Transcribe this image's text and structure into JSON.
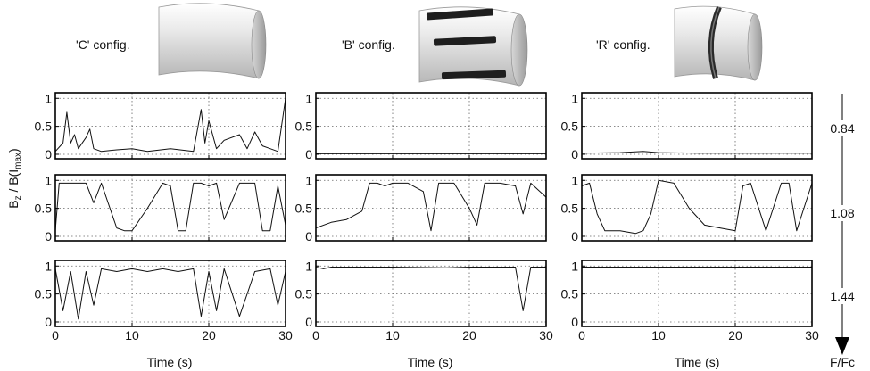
{
  "figure": {
    "ylabel": "B_z / B(I_max)",
    "ylabel_main": "B",
    "ylabel_sub_z": "z",
    "ylabel_mid": " / B(I",
    "ylabel_sub_max": "max",
    "ylabel_end": ")",
    "xlabel": "Time (s)",
    "ratio_axis_label": "F/Fc",
    "ratios": [
      "0.84",
      "1.08",
      "1.44"
    ]
  },
  "configs": [
    {
      "label": "'C' config."
    },
    {
      "label": "'B' config."
    },
    {
      "label": "'R' config."
    }
  ],
  "chart_data": {
    "type": "line",
    "layout": "3x3 grid of time series; columns = configurations, rows = F/Fc ratio",
    "xlabel": "Time (s)",
    "ylabel": "Bz / B(Imax)",
    "xlim": [
      0,
      30
    ],
    "ylim": [
      0,
      1
    ],
    "x_ticks": [
      0,
      10,
      20,
      30
    ],
    "y_ticks": [
      0,
      0.5,
      1
    ],
    "grid": "dotted",
    "columns": [
      "'C' config.",
      "'B' config.",
      "'R' config."
    ],
    "rows": [
      "0.84",
      "1.08",
      "1.44"
    ],
    "panels": [
      {
        "config": "'C' config.",
        "ratio": "0.84",
        "x": [
          0,
          1,
          1.5,
          2,
          2.5,
          3,
          4,
          4.5,
          5,
          6,
          8,
          10,
          12,
          15,
          18,
          19,
          19.5,
          20,
          21,
          22,
          24,
          25,
          26,
          27,
          28,
          29,
          30
        ],
        "y": [
          0.05,
          0.2,
          0.75,
          0.2,
          0.35,
          0.1,
          0.3,
          0.45,
          0.1,
          0.05,
          0.08,
          0.1,
          0.05,
          0.1,
          0.05,
          0.8,
          0.2,
          0.6,
          0.1,
          0.25,
          0.35,
          0.1,
          0.4,
          0.15,
          0.1,
          0.05,
          1.0
        ]
      },
      {
        "config": "'B' config.",
        "ratio": "0.84",
        "x": [
          0,
          10,
          20,
          30
        ],
        "y": [
          0.01,
          0.01,
          0.01,
          0.01
        ]
      },
      {
        "config": "'R' config.",
        "ratio": "0.84",
        "x": [
          0,
          5,
          8,
          10,
          15,
          20,
          30
        ],
        "y": [
          0.02,
          0.03,
          0.05,
          0.03,
          0.02,
          0.02,
          0.02
        ]
      },
      {
        "config": "'C' config.",
        "ratio": "1.08",
        "x": [
          0,
          0.5,
          1,
          4,
          5,
          6,
          8,
          9,
          10,
          12,
          14,
          15,
          16,
          17,
          18,
          19,
          20,
          21,
          22,
          24,
          26,
          27,
          28,
          29,
          30
        ],
        "y": [
          0.1,
          0.95,
          0.95,
          0.95,
          0.6,
          0.95,
          0.15,
          0.1,
          0.1,
          0.5,
          0.95,
          0.9,
          0.1,
          0.1,
          0.95,
          0.95,
          0.9,
          0.95,
          0.3,
          0.95,
          0.95,
          0.1,
          0.1,
          0.9,
          0.2
        ]
      },
      {
        "config": "'B' config.",
        "ratio": "1.08",
        "x": [
          0,
          2,
          4,
          6,
          7,
          8,
          9,
          10,
          12,
          14,
          15,
          16,
          18,
          20,
          21,
          22,
          24,
          26,
          27,
          28,
          30
        ],
        "y": [
          0.15,
          0.25,
          0.3,
          0.45,
          0.95,
          0.95,
          0.9,
          0.95,
          0.95,
          0.8,
          0.1,
          0.95,
          0.95,
          0.5,
          0.2,
          0.95,
          0.95,
          0.9,
          0.4,
          0.95,
          0.7
        ]
      },
      {
        "config": "'R' config.",
        "ratio": "1.08",
        "x": [
          0,
          1,
          2,
          3,
          5,
          7,
          8,
          9,
          10,
          12,
          14,
          16,
          18,
          20,
          21,
          22,
          24,
          26,
          27,
          28,
          30
        ],
        "y": [
          0.9,
          0.95,
          0.4,
          0.1,
          0.1,
          0.05,
          0.1,
          0.4,
          1.0,
          0.95,
          0.5,
          0.2,
          0.15,
          0.1,
          0.9,
          0.95,
          0.1,
          0.95,
          0.95,
          0.1,
          0.95
        ]
      },
      {
        "config": "'C' config.",
        "ratio": "1.44",
        "x": [
          0,
          1,
          2,
          3,
          4,
          5,
          6,
          8,
          10,
          12,
          14,
          16,
          18,
          19,
          20,
          21,
          22,
          24,
          26,
          28,
          29,
          30
        ],
        "y": [
          0.95,
          0.2,
          0.9,
          0.05,
          0.9,
          0.3,
          0.95,
          0.9,
          0.95,
          0.9,
          0.95,
          0.9,
          0.95,
          0.1,
          0.9,
          0.2,
          0.95,
          0.1,
          0.9,
          0.95,
          0.3,
          0.9
        ]
      },
      {
        "config": "'B' config.",
        "ratio": "1.44",
        "x": [
          0,
          1,
          2,
          10,
          17,
          20,
          26,
          27,
          28,
          30
        ],
        "y": [
          0.98,
          0.95,
          0.98,
          0.98,
          0.97,
          0.98,
          0.98,
          0.2,
          0.98,
          0.98
        ]
      },
      {
        "config": "'R' config.",
        "ratio": "1.44",
        "x": [
          0,
          10,
          20,
          30
        ],
        "y": [
          0.98,
          0.98,
          0.98,
          0.98
        ]
      }
    ]
  },
  "colors": {
    "trace": "#111111",
    "frame": "#000000",
    "grid": "#666666",
    "cylinder_light": "#f2f2f2",
    "cylinder_dark": "#b8b8b8",
    "bar": "#1e1e1e"
  }
}
